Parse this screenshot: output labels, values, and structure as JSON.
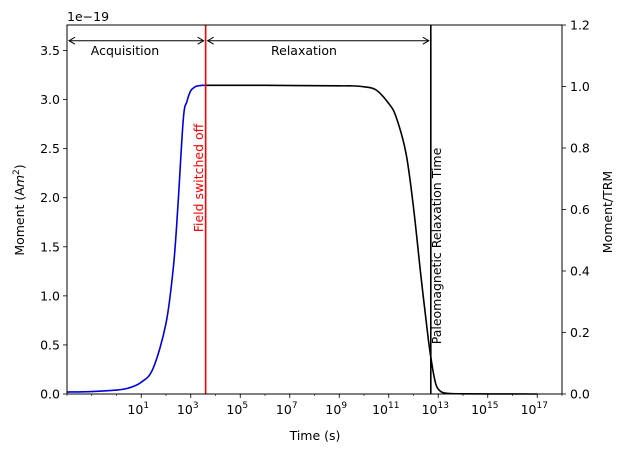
{
  "chart_data": {
    "type": "line",
    "xlabel": "Time (s)",
    "xscale": "log",
    "xlim": [
      0.01,
      1e+18
    ],
    "x_ticks": [
      {
        "value": 10,
        "base": "10",
        "exp": "1"
      },
      {
        "value": 1000,
        "base": "10",
        "exp": "3"
      },
      {
        "value": 100000,
        "base": "10",
        "exp": "5"
      },
      {
        "value": 10000000.0,
        "base": "10",
        "exp": "7"
      },
      {
        "value": 1000000000.0,
        "base": "10",
        "exp": "9"
      },
      {
        "value": 100000000000.0,
        "base": "10",
        "exp": "11"
      },
      {
        "value": 10000000000000.0,
        "base": "10",
        "exp": "13"
      },
      {
        "value": 1000000000000000.0,
        "base": "10",
        "exp": "15"
      },
      {
        "value": 1e+17,
        "base": "10",
        "exp": "17"
      }
    ],
    "y_left": {
      "label_main": "Moment (A",
      "label_unit_italic": "m",
      "label_sup": "2",
      "label_close": ")",
      "offset_text": "1e−19",
      "ylim": [
        0,
        3.76
      ],
      "ticks": [
        0.0,
        0.5,
        1.0,
        1.5,
        2.0,
        2.5,
        3.0,
        3.5
      ],
      "tick_labels": [
        "0.0",
        "0.5",
        "1.0",
        "1.5",
        "2.0",
        "2.5",
        "3.0",
        "3.5"
      ]
    },
    "y_right": {
      "label": "Moment/TRM",
      "ylim": [
        0,
        1.2
      ],
      "ticks": [
        0.0,
        0.2,
        0.4,
        0.6,
        0.8,
        1.0,
        1.2
      ],
      "tick_labels": [
        "0.0",
        "0.2",
        "0.4",
        "0.6",
        "0.8",
        "1.0",
        "1.2"
      ]
    },
    "series": [
      {
        "color": "#0000dd",
        "x": [
          0.01,
          0.1,
          1,
          3,
          10,
          30,
          100,
          200,
          300,
          500,
          700,
          1000,
          1500,
          2000,
          3000,
          4000
        ],
        "y": [
          0.02,
          0.025,
          0.04,
          0.06,
          0.12,
          0.26,
          0.72,
          1.3,
          1.9,
          2.8,
          2.98,
          3.09,
          3.13,
          3.14,
          3.145,
          3.145
        ]
      },
      {
        "color": "#000000",
        "x": [
          4000,
          1000000.0,
          1000000000.0,
          3000000000.0,
          10000000000.0,
          30000000000.0,
          100000000000.0,
          200000000000.0,
          500000000000.0,
          1000000000000.0,
          2000000000000.0,
          4000000000000.0,
          6000000000000.0,
          8000000000000.0,
          10000000000000.0,
          15000000000000.0,
          30000000000000.0,
          100000000000000.0,
          1000000000000000.0,
          1e+17
        ],
        "y": [
          3.145,
          3.145,
          3.14,
          3.14,
          3.13,
          3.1,
          2.96,
          2.82,
          2.45,
          1.9,
          1.2,
          0.55,
          0.25,
          0.1,
          0.05,
          0.015,
          0.005,
          0.002,
          0.001,
          0.0
        ]
      }
    ],
    "vlines": [
      {
        "x": 4000,
        "color": "#ff0000"
      },
      {
        "x": 5000000000000.0,
        "color": "#000000"
      }
    ],
    "annotations": {
      "acquisition": "Acquisition",
      "relaxation": "Relaxation",
      "field_switched_off": "Field switched off",
      "relaxation_time": "Paleomagnetic Relaxation Time"
    },
    "arrows": [
      {
        "from_x": 0.01,
        "to_x": 4000,
        "y": 3.6
      },
      {
        "from_x": 4000,
        "to_x": 5000000000000.0,
        "y": 3.6
      }
    ],
    "grid": false,
    "colors": {
      "acquisition": "#0000dd",
      "relaxation": "#000000",
      "field_line": "#ff0000"
    }
  }
}
